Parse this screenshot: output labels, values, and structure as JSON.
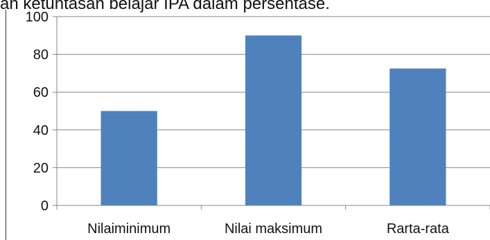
{
  "header": {
    "cutoff_text": "an ketuntasan belajar IPA dalam persentase."
  },
  "chart_data": {
    "type": "bar",
    "categories": [
      "Nilaiminimum",
      "Nilai maksimum",
      "Rarta-rata"
    ],
    "values": [
      50,
      90,
      72.5
    ],
    "title": "",
    "xlabel": "",
    "ylabel": "",
    "ylim": [
      0,
      100
    ],
    "yticks": [
      "0",
      "20",
      "40",
      "60",
      "80",
      "100"
    ],
    "grid": true,
    "legend": "none",
    "bar_color": "#4f81bd",
    "grid_color": "#868686"
  }
}
